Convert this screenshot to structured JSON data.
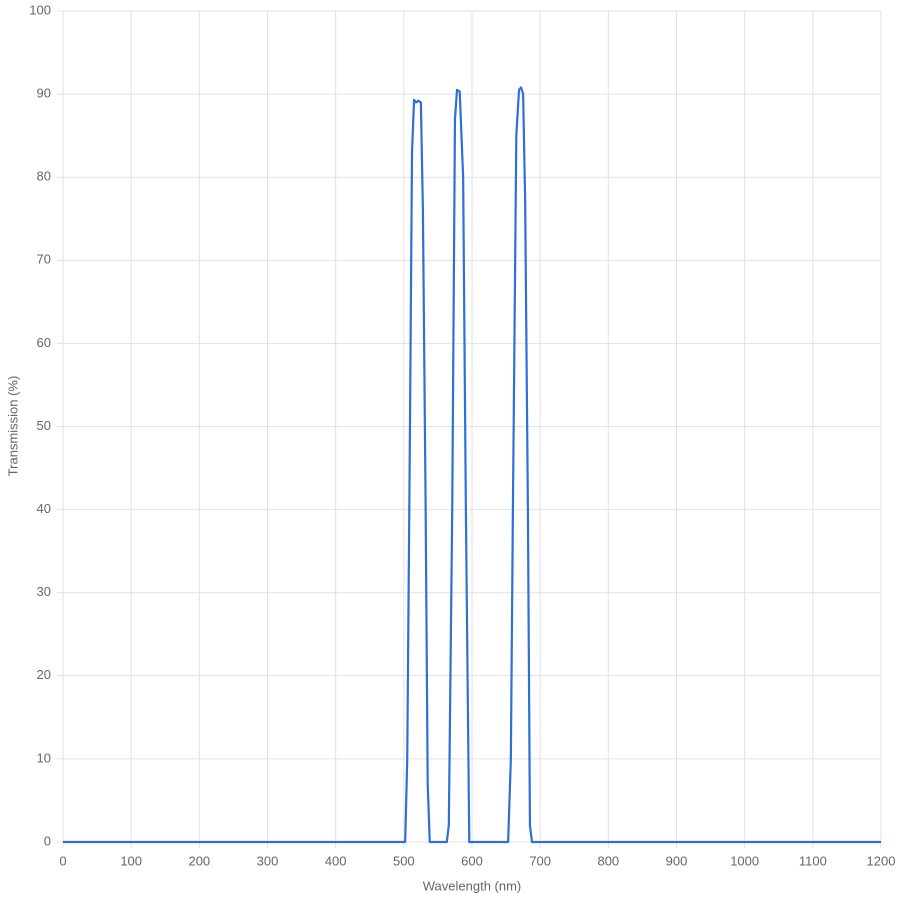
{
  "chart_data": {
    "type": "line",
    "x_label": "Wavelength (nm)",
    "y_label": "Transmission (%)",
    "x": [
      0,
      502,
      505,
      509,
      512,
      515,
      518,
      521,
      525,
      528,
      532,
      535,
      538,
      563,
      566,
      571,
      575,
      578,
      582,
      587,
      591,
      596,
      653,
      657,
      660,
      665,
      669,
      672,
      675,
      678,
      682,
      685,
      688,
      1200
    ],
    "series": [
      {
        "name": "Transmission",
        "color": "#2e6fd8",
        "values": [
          0,
          0,
          10,
          50,
          83,
          89.3,
          89,
          89.2,
          89,
          76,
          40,
          7,
          0,
          0,
          2,
          40,
          87,
          90.5,
          90.3,
          80,
          40,
          0,
          0,
          10,
          40,
          85,
          90.5,
          90.8,
          90,
          77,
          40,
          2,
          0,
          0
        ]
      }
    ],
    "xlim": [
      0,
      1200
    ],
    "xticks": [
      0,
      100,
      200,
      300,
      400,
      500,
      600,
      700,
      800,
      900,
      1000,
      1100,
      1200
    ],
    "ylim": [
      0,
      100
    ],
    "yticks": [
      0,
      10,
      20,
      30,
      40,
      50,
      60,
      70,
      80,
      90,
      100
    ],
    "grid": true
  }
}
